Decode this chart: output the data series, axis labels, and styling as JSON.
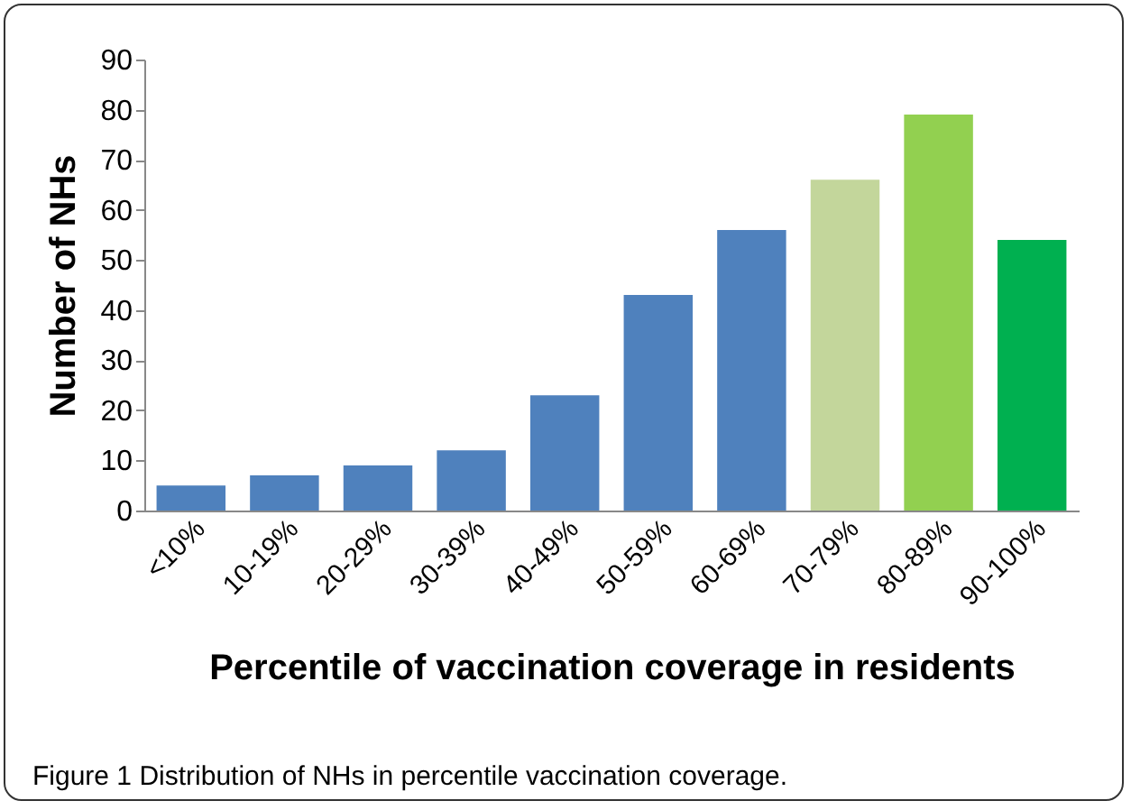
{
  "chart_data": {
    "type": "bar",
    "categories": [
      "<10%",
      "10-19%",
      "20-29%",
      "30-39%",
      "40-49%",
      "50-59%",
      "60-69%",
      "70-79%",
      "80-89%",
      "90-100%"
    ],
    "values": [
      5,
      7,
      9,
      12,
      23,
      43,
      56,
      66,
      79,
      54
    ],
    "colors": [
      "#4f81bd",
      "#4f81bd",
      "#4f81bd",
      "#4f81bd",
      "#4f81bd",
      "#4f81bd",
      "#4f81bd",
      "#c3d69b",
      "#92d050",
      "#00b050"
    ],
    "xlabel": "Percentile of vaccination coverage in residents",
    "ylabel": "Number of NHs",
    "ylim": [
      0,
      90
    ],
    "yticks": [
      0,
      10,
      20,
      30,
      40,
      50,
      60,
      70,
      80,
      90
    ],
    "grid": false,
    "annotations": [
      "Figure 1 Distribution of NHs in percentile vaccination coverage."
    ]
  }
}
